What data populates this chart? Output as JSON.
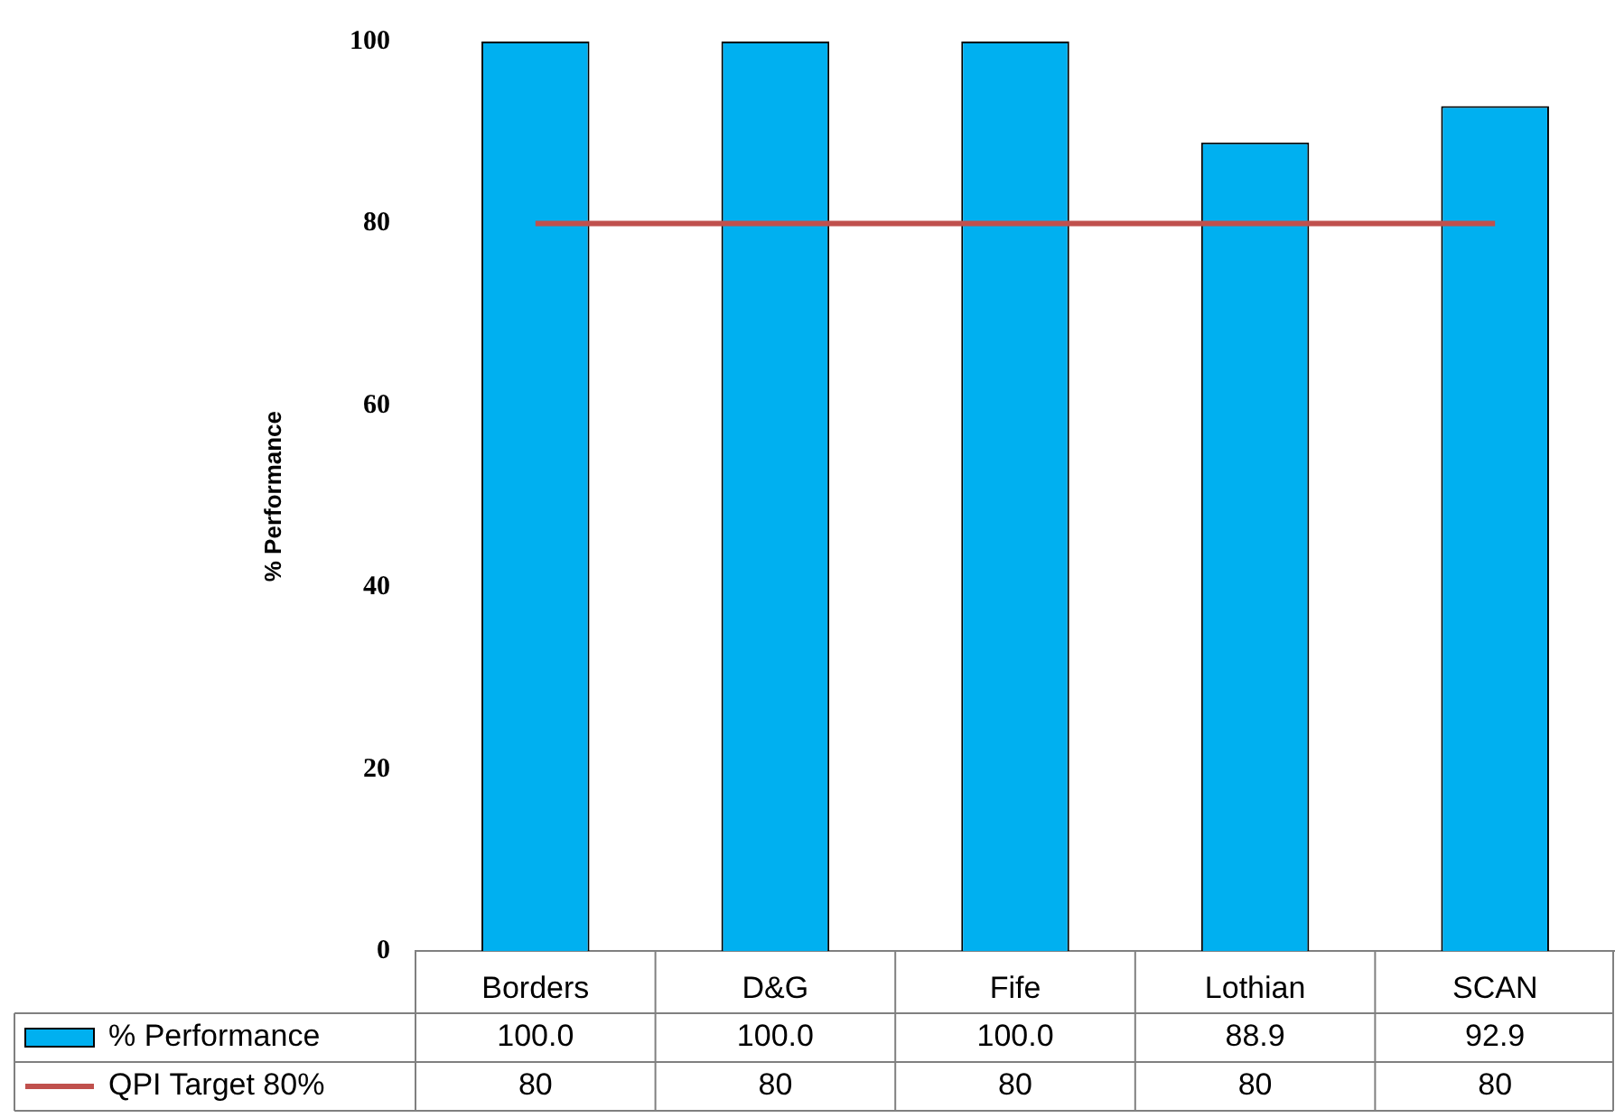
{
  "chart_data": {
    "type": "bar",
    "ylabel": "% Performance",
    "categories": [
      "Borders",
      "D&G",
      "Fife",
      "Lothian",
      "SCAN"
    ],
    "series": [
      {
        "name": "% Performance",
        "color": "#00b0f0",
        "values": [
          100,
          100,
          100,
          88.9,
          92.9
        ],
        "value_labels": [
          "100.0",
          "100.0",
          "100.0",
          "88.9",
          "92.9"
        ]
      },
      {
        "name": "QPI Target 80%",
        "type": "line",
        "color": "#c0504d",
        "values": [
          80,
          80,
          80,
          80,
          80
        ],
        "value_labels": [
          "80",
          "80",
          "80",
          "80",
          "80"
        ]
      }
    ],
    "ylim": [
      0,
      100
    ],
    "yticks": [
      0,
      20,
      40,
      60,
      80,
      100
    ],
    "grid": false,
    "legend": "bottom",
    "marker": "none"
  }
}
